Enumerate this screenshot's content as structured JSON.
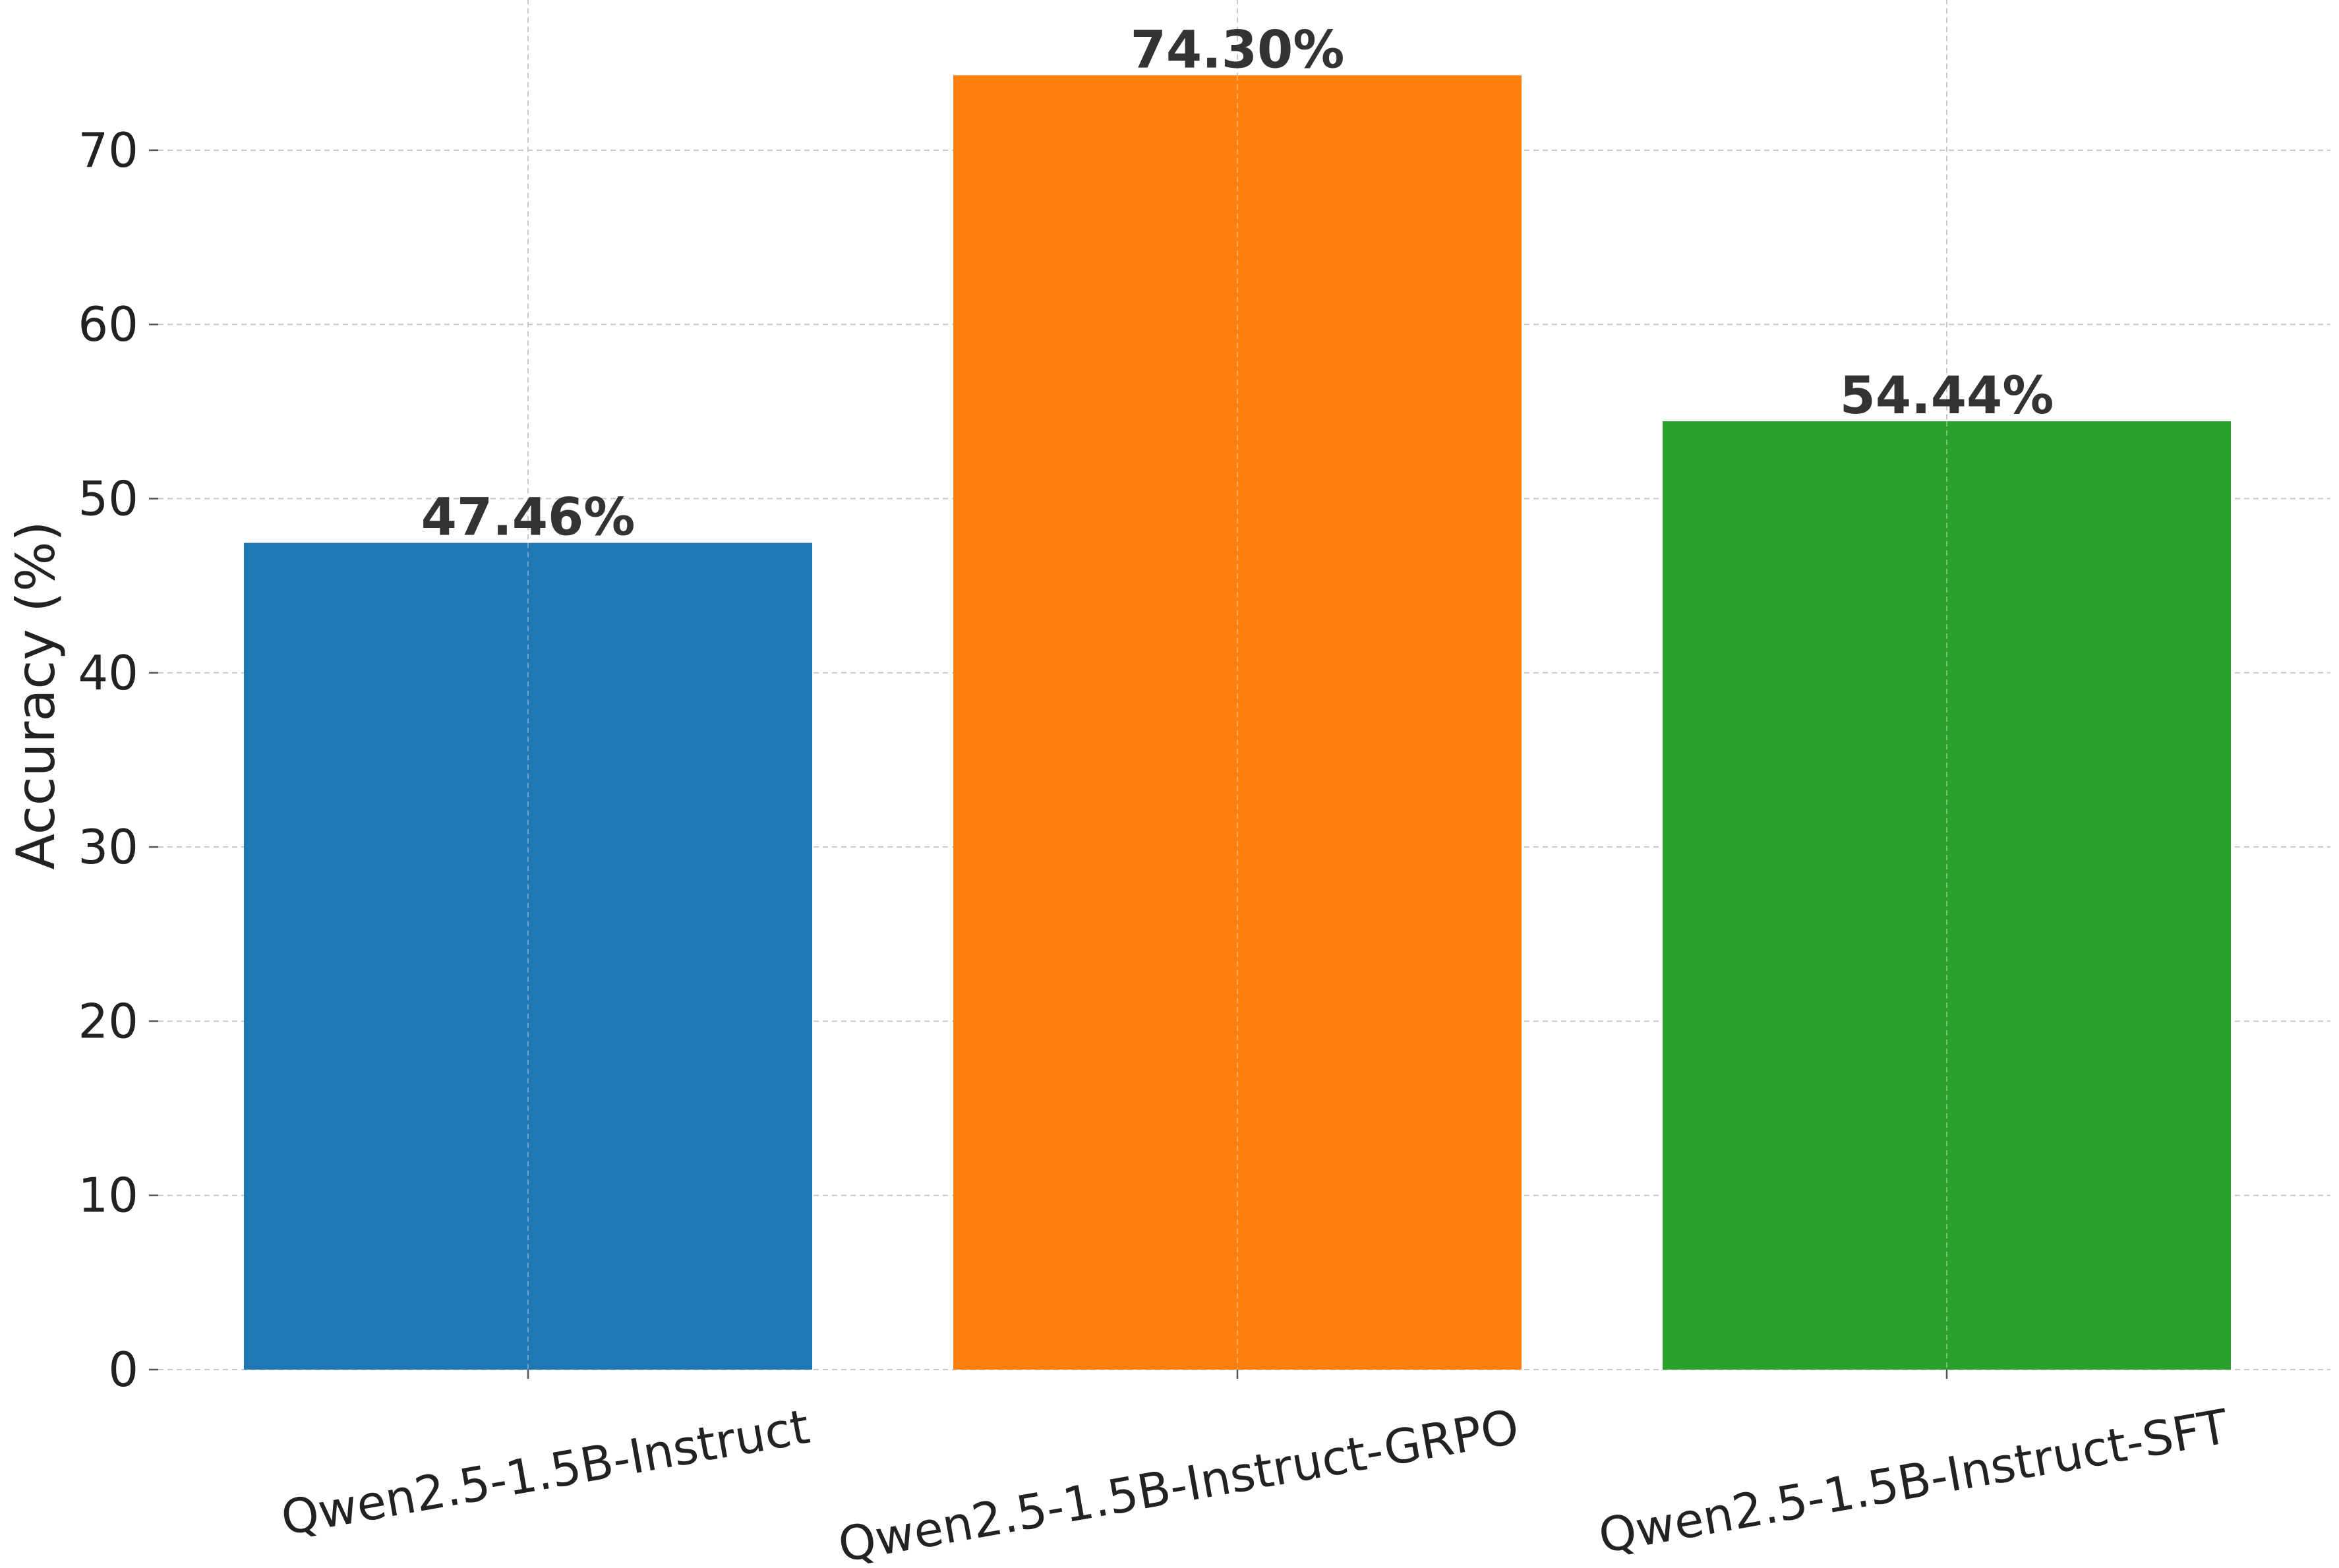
{
  "chart_data": {
    "type": "bar",
    "categories": [
      "Qwen2.5-1.5B-Instruct",
      "Qwen2.5-1.5B-Instruct-GRPO",
      "Qwen2.5-1.5B-Instruct-SFT"
    ],
    "values": [
      47.46,
      74.3,
      54.44
    ],
    "data_labels": [
      "47.46%",
      "74.30%",
      "54.44%"
    ],
    "colors": [
      "#1f77b4",
      "#ff7f0e",
      "#2ca02c"
    ],
    "ylabel": "Accuracy (%)",
    "ylim": [
      0,
      78
    ],
    "yticks": [
      0,
      10,
      20,
      30,
      40,
      50,
      60,
      70
    ],
    "grid": true
  }
}
